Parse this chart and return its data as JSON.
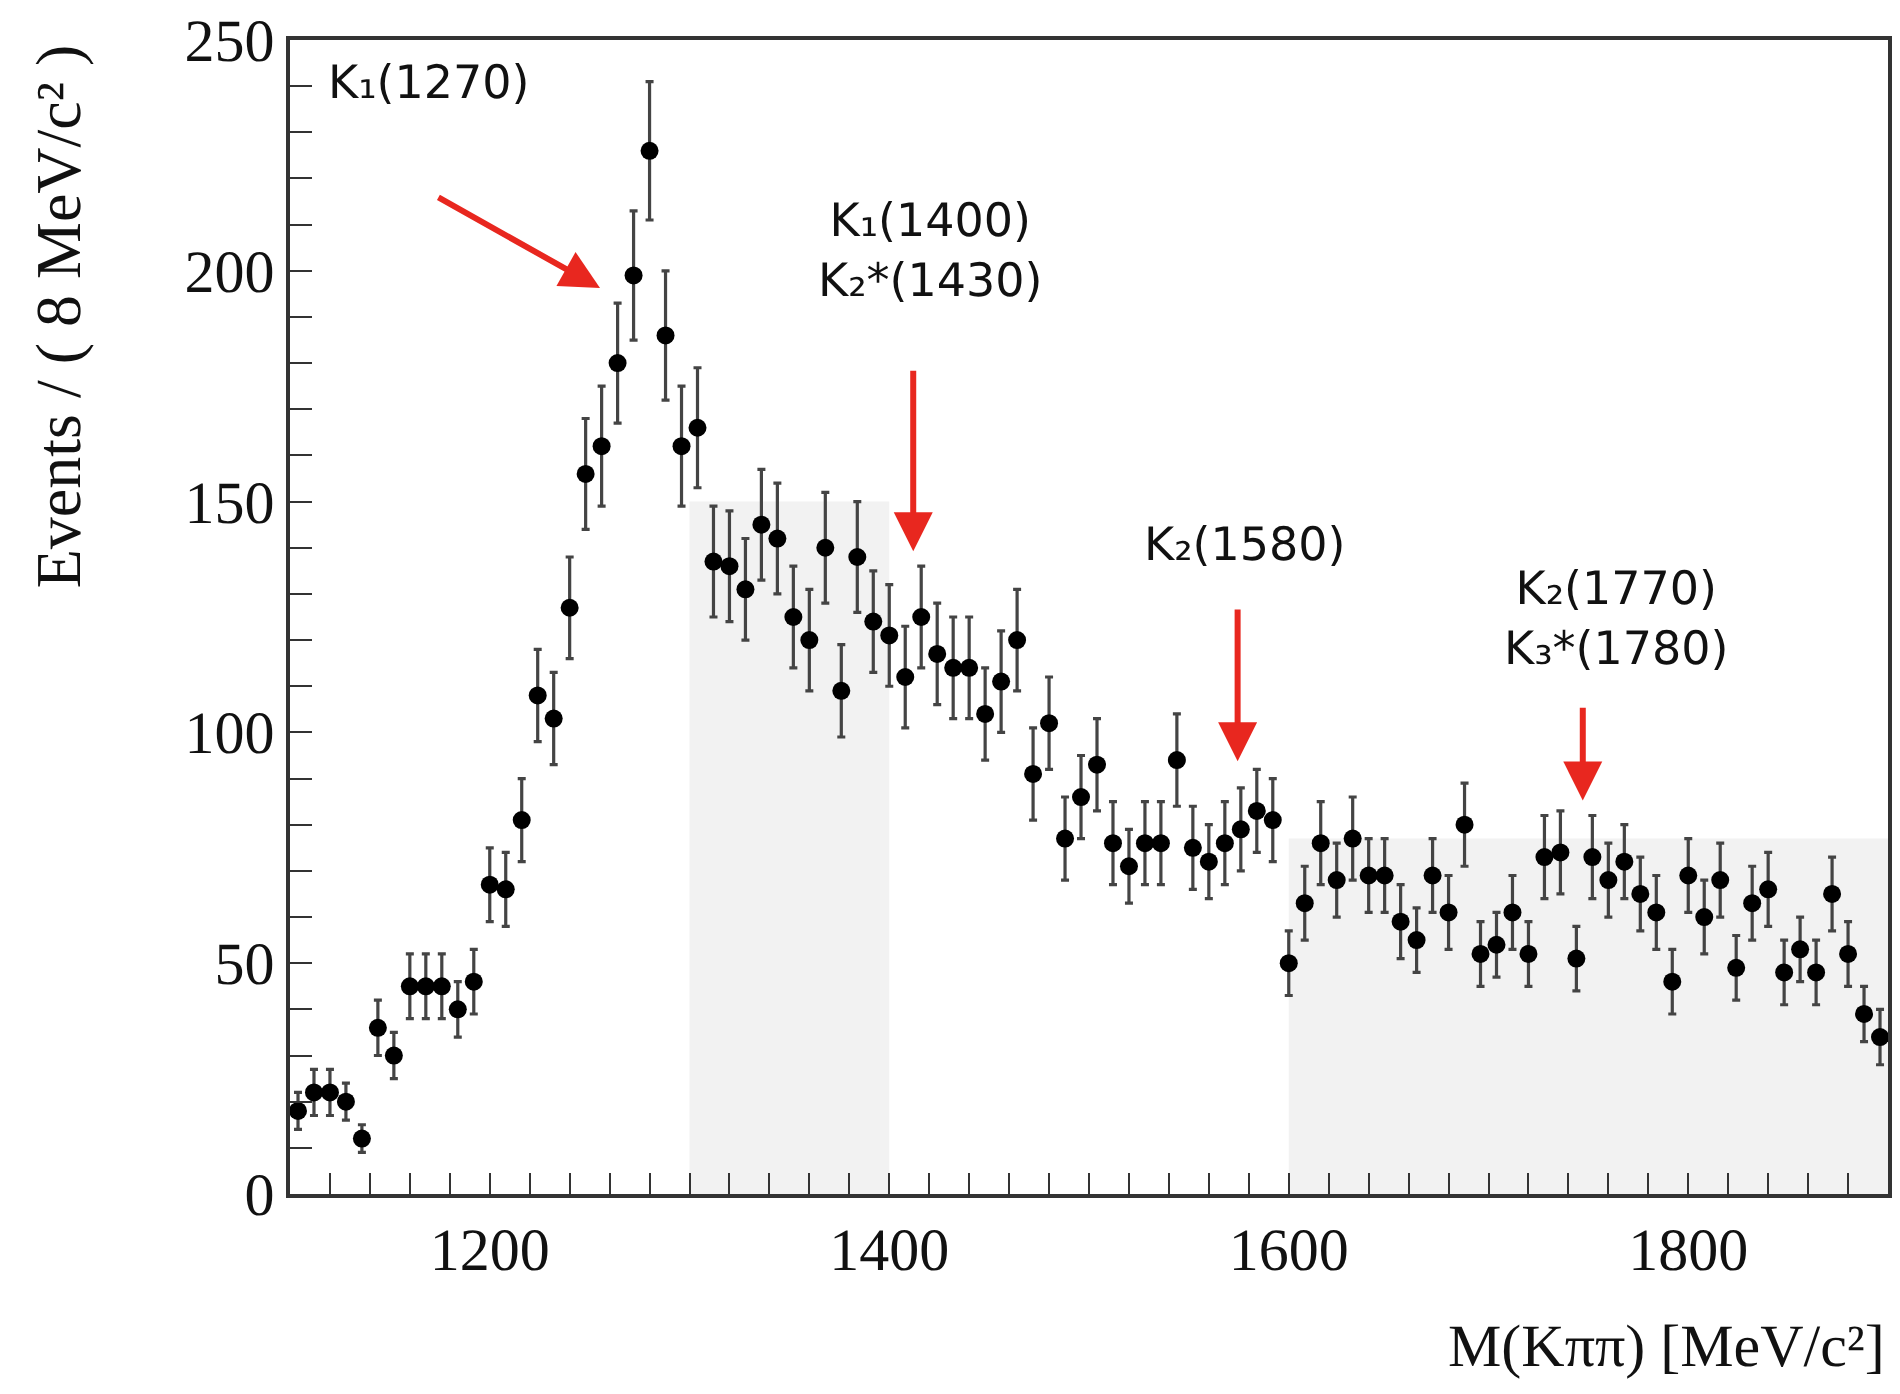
{
  "chart_data": {
    "type": "scatter",
    "xlabel": "M(Kππ) [MeV/c²]",
    "ylabel": "Events / ( 8 MeV/c² )",
    "xlim": [
      1100,
      1900
    ],
    "xticks": [
      {
        "value": 1100,
        "label": null
      },
      {
        "value": 1120,
        "label": null
      },
      {
        "value": 1140,
        "label": null
      },
      {
        "value": 1160,
        "label": null
      },
      {
        "value": 1180,
        "label": null
      },
      1200,
      {
        "value": 1220,
        "label": null
      },
      {
        "value": 1240,
        "label": null
      },
      {
        "value": 1260,
        "label": null
      },
      {
        "value": 1280,
        "label": null
      },
      {
        "value": 1300,
        "label": null
      },
      {
        "value": 1320,
        "label": null
      },
      {
        "value": 1340,
        "label": null
      },
      {
        "value": 1360,
        "label": null
      },
      {
        "value": 1380,
        "label": null
      },
      1400,
      {
        "value": 1420,
        "label": null
      },
      {
        "value": 1440,
        "label": null
      },
      {
        "value": 1460,
        "label": null
      },
      {
        "value": 1480,
        "label": null
      },
      {
        "value": 1500,
        "label": null
      },
      {
        "value": 1520,
        "label": null
      },
      {
        "value": 1540,
        "label": null
      },
      {
        "value": 1560,
        "label": null
      },
      {
        "value": 1580,
        "label": null
      },
      1600,
      {
        "value": 1620,
        "label": null
      },
      {
        "value": 1640,
        "label": null
      },
      {
        "value": 1660,
        "label": null
      },
      {
        "value": 1680,
        "label": null
      },
      {
        "value": 1700,
        "label": null
      },
      {
        "value": 1720,
        "label": null
      },
      {
        "value": 1740,
        "label": null
      },
      {
        "value": 1760,
        "label": null
      },
      {
        "value": 1780,
        "label": null
      },
      1800,
      {
        "value": 1820,
        "label": null
      },
      {
        "value": 1840,
        "label": null
      },
      {
        "value": 1860,
        "label": null
      },
      {
        "value": 1880,
        "label": null
      },
      {
        "value": 1900,
        "label": null
      }
    ],
    "ylim": [
      0,
      250
    ],
    "yticks": [
      0,
      {
        "value": 10,
        "label": null
      },
      {
        "value": 20,
        "label": null
      },
      {
        "value": 30,
        "label": null
      },
      {
        "value": 40,
        "label": null
      },
      50,
      {
        "value": 60,
        "label": null
      },
      {
        "value": 70,
        "label": null
      },
      {
        "value": 80,
        "label": null
      },
      {
        "value": 90,
        "label": null
      },
      100,
      {
        "value": 110,
        "label": null
      },
      {
        "value": 120,
        "label": null
      },
      {
        "value": 130,
        "label": null
      },
      {
        "value": 140,
        "label": null
      },
      150,
      {
        "value": 160,
        "label": null
      },
      {
        "value": 170,
        "label": null
      },
      {
        "value": 180,
        "label": null
      },
      {
        "value": 190,
        "label": null
      },
      200,
      {
        "value": 210,
        "label": null
      },
      {
        "value": 220,
        "label": null
      },
      {
        "value": 230,
        "label": null
      },
      {
        "value": 240,
        "label": null
      },
      250
    ],
    "annotations": [
      "K₁(1270)",
      "K₁(1400)\nK₂*(1430)",
      "K₂(1580)",
      "K₂(1770)\nK₃*(1780)"
    ],
    "series": [
      {
        "type": "area",
        "color": "#f2f2f2",
        "x": [
          1300,
          1400
        ],
        "values": [
          150,
          150
        ]
      },
      {
        "type": "area",
        "color": "#f2f2f2",
        "x": [
          1600,
          1900
        ],
        "values": [
          77,
          77
        ]
      },
      {
        "marker": "circle",
        "color": "#000000",
        "x": [
          1104,
          1112,
          1120,
          1128,
          1136,
          1144,
          1152,
          1160,
          1168,
          1176,
          1184,
          1192,
          1200,
          1208,
          1216,
          1224,
          1232,
          1240,
          1248,
          1256,
          1264,
          1272,
          1280,
          1288,
          1296,
          1304,
          1312,
          1320,
          1328,
          1336,
          1344,
          1352,
          1360,
          1368,
          1376,
          1384,
          1392,
          1400,
          1408,
          1416,
          1424,
          1432,
          1440,
          1448,
          1456,
          1464,
          1472,
          1480,
          1488,
          1496,
          1504,
          1512,
          1520,
          1528,
          1536,
          1544,
          1552,
          1560,
          1568,
          1576,
          1584,
          1592,
          1600,
          1608,
          1616,
          1624,
          1632,
          1640,
          1648,
          1656,
          1664,
          1672,
          1680,
          1688,
          1696,
          1704,
          1712,
          1720,
          1728,
          1736,
          1744,
          1752,
          1760,
          1768,
          1776,
          1784,
          1792,
          1800,
          1808,
          1816,
          1824,
          1832,
          1840,
          1848,
          1856,
          1864,
          1872,
          1880,
          1888,
          1896
        ],
        "values": [
          18,
          22,
          22,
          20,
          12,
          36,
          30,
          45,
          45,
          45,
          40,
          46,
          67,
          66,
          81,
          108,
          103,
          127,
          156,
          162,
          180,
          199,
          226,
          186,
          162,
          166,
          137,
          136,
          131,
          145,
          142,
          125,
          120,
          140,
          109,
          138,
          124,
          121,
          112,
          125,
          117,
          114,
          114,
          104,
          111,
          120,
          91,
          102,
          77,
          86,
          93,
          76,
          71,
          76,
          76,
          94,
          75,
          72,
          76,
          79,
          83,
          81,
          50,
          63,
          76,
          68,
          77,
          69,
          69,
          59,
          55,
          69,
          61,
          80,
          52,
          54,
          61,
          52,
          73,
          74,
          51,
          73,
          68,
          72,
          65,
          61,
          46,
          69,
          60,
          68,
          49,
          63,
          66,
          48,
          53,
          48,
          65,
          52,
          39,
          34
        ],
        "errors": [
          4,
          5,
          5,
          4,
          3,
          6,
          5,
          7,
          7,
          7,
          6,
          7,
          8,
          8,
          9,
          10,
          10,
          11,
          12,
          13,
          13,
          14,
          15,
          14,
          13,
          13,
          12,
          12,
          11,
          12,
          12,
          11,
          11,
          12,
          10,
          12,
          11,
          11,
          11,
          11,
          11,
          11,
          11,
          10,
          11,
          11,
          10,
          10,
          9,
          9,
          10,
          9,
          8,
          9,
          9,
          10,
          9,
          8,
          9,
          9,
          9,
          9,
          7,
          8,
          9,
          8,
          9,
          8,
          8,
          8,
          7,
          8,
          8,
          9,
          7,
          7,
          8,
          7,
          9,
          9,
          7,
          9,
          8,
          8,
          8,
          8,
          7,
          8,
          8,
          8,
          7,
          8,
          8,
          7,
          7,
          7,
          8,
          7,
          6,
          6
        ]
      }
    ]
  }
}
